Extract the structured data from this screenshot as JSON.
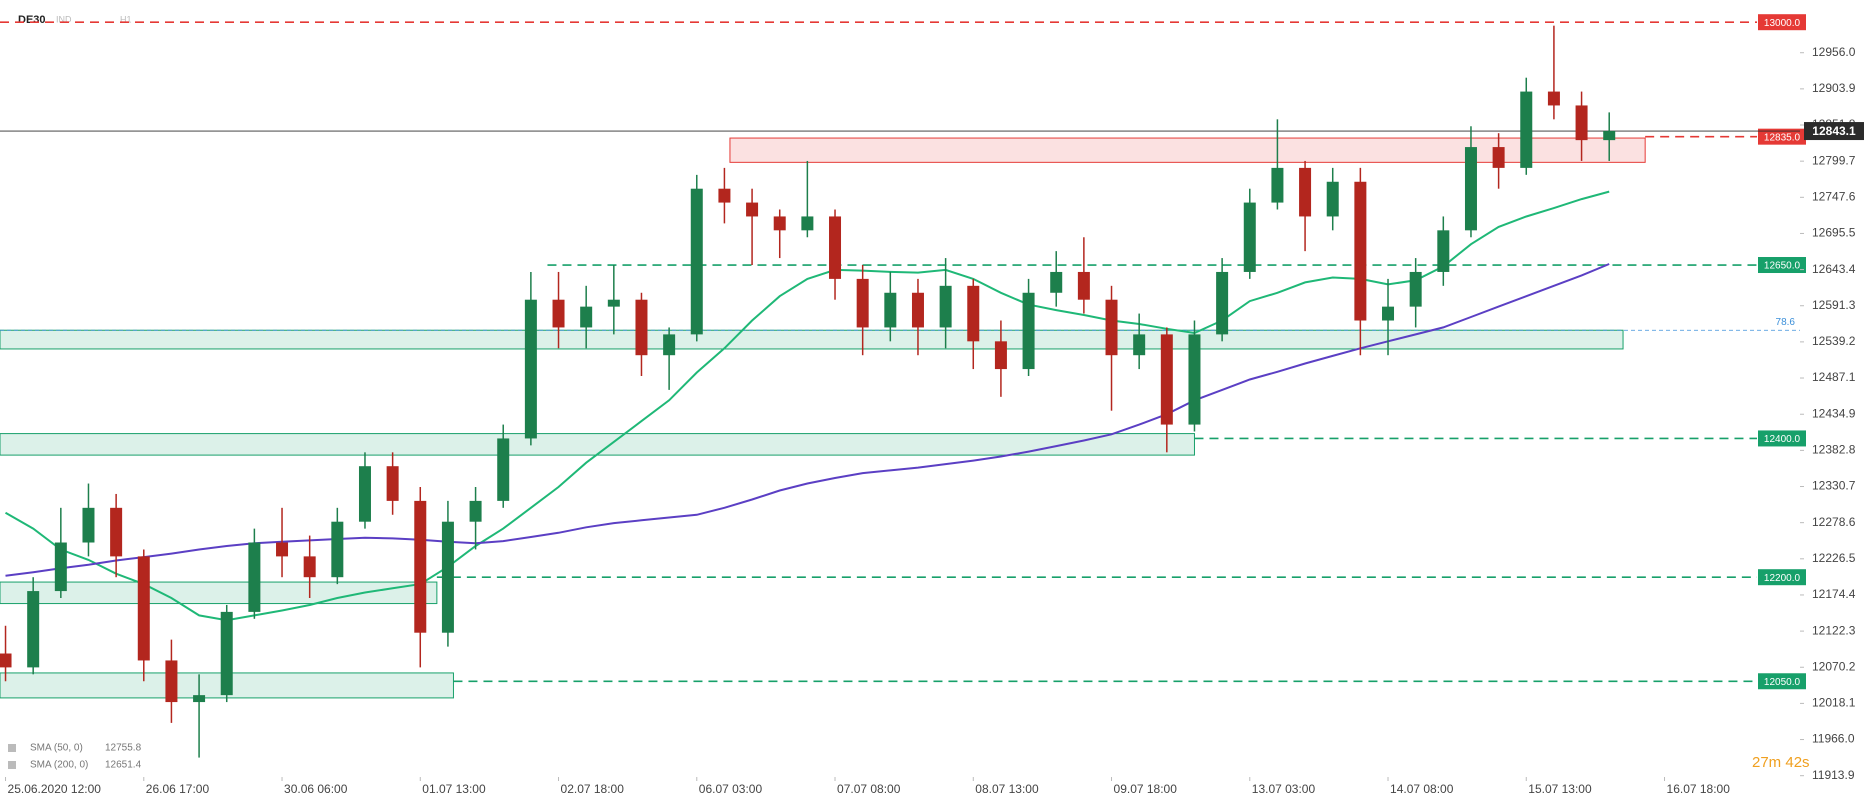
{
  "chart_data": {
    "type": "candlestick",
    "title": "DE30",
    "symbol_tags": [
      "IND",
      "H1"
    ],
    "timer": "27m 42s",
    "ohlc": {
      "open": [
        12090,
        12070,
        12180,
        12250,
        12300,
        12230,
        12080,
        12020,
        12030,
        12150,
        12250,
        12230,
        12200,
        12280,
        12360,
        12310,
        12120,
        12280,
        12310,
        12400,
        12600,
        12560,
        12590,
        12600,
        12520,
        12550,
        12760,
        12740,
        12720,
        12700,
        12720,
        12630,
        12560,
        12610,
        12560,
        12620,
        12540,
        12500,
        12610,
        12640,
        12600,
        12520,
        12550,
        12420,
        12550,
        12640,
        12740,
        12790,
        12720,
        12770,
        12570,
        12590,
        12640,
        12700,
        12820,
        12790,
        12900,
        12880,
        12830
      ],
      "high": [
        12130,
        12200,
        12300,
        12335,
        12320,
        12240,
        12110,
        12060,
        12160,
        12270,
        12300,
        12260,
        12300,
        12380,
        12380,
        12330,
        12310,
        12330,
        12420,
        12640,
        12640,
        12620,
        12650,
        12610,
        12560,
        12780,
        12790,
        12760,
        12730,
        12800,
        12730,
        12650,
        12640,
        12630,
        12660,
        12630,
        12570,
        12630,
        12670,
        12690,
        12620,
        12580,
        12560,
        12570,
        12660,
        12760,
        12860,
        12800,
        12790,
        12790,
        12630,
        12660,
        12720,
        12850,
        12840,
        12920,
        12995,
        12900,
        12870
      ],
      "low": [
        12050,
        12060,
        12170,
        12230,
        12200,
        12050,
        11990,
        11940,
        12020,
        12140,
        12200,
        12170,
        12190,
        12270,
        12290,
        12070,
        12100,
        12240,
        12300,
        12390,
        12530,
        12530,
        12550,
        12490,
        12470,
        12540,
        12710,
        12650,
        12660,
        12690,
        12600,
        12520,
        12540,
        12520,
        12530,
        12500,
        12460,
        12490,
        12590,
        12580,
        12440,
        12500,
        12380,
        12410,
        12540,
        12630,
        12730,
        12670,
        12700,
        12520,
        12520,
        12560,
        12620,
        12690,
        12760,
        12780,
        12860,
        12800,
        12800
      ],
      "close": [
        12070,
        12180,
        12250,
        12300,
        12230,
        12080,
        12020,
        12030,
        12150,
        12250,
        12230,
        12200,
        12280,
        12360,
        12310,
        12120,
        12280,
        12310,
        12400,
        12600,
        12560,
        12590,
        12600,
        12520,
        12550,
        12760,
        12740,
        12720,
        12700,
        12720,
        12630,
        12560,
        12610,
        12560,
        12620,
        12540,
        12500,
        12610,
        12640,
        12600,
        12520,
        12550,
        12420,
        12550,
        12640,
        12740,
        12790,
        12720,
        12770,
        12570,
        12590,
        12640,
        12700,
        12820,
        12790,
        12900,
        12880,
        12830,
        12843.1
      ]
    },
    "bull_color": "#1d7f4c",
    "bear_color": "#b3261e",
    "series": [
      {
        "name": "SMA (50, 0)",
        "color": "#1fb877",
        "values": [
          12293,
          12270,
          12240,
          12225,
          12205,
          12190,
          12170,
          12145,
          12138,
          12145,
          12152,
          12160,
          12170,
          12178,
          12184,
          12190,
          12215,
          12245,
          12270,
          12300,
          12330,
          12365,
          12395,
          12425,
          12455,
          12495,
          12530,
          12570,
          12605,
          12630,
          12643,
          12642,
          12640,
          12639,
          12643,
          12630,
          12610,
          12593,
          12585,
          12578,
          12570,
          12565,
          12558,
          12552,
          12570,
          12598,
          12610,
          12625,
          12632,
          12630,
          12622,
          12628,
          12648,
          12680,
          12705,
          12720,
          12732,
          12745,
          12755.8
        ]
      },
      {
        "name": "SMA (200, 0)",
        "color": "#5b3fc4",
        "values": [
          12202,
          12207,
          12213,
          12218,
          12224,
          12229,
          12234,
          12240,
          12245,
          12249,
          12251,
          12253,
          12255,
          12257,
          12256,
          12254,
          12251,
          12249,
          12252,
          12258,
          12264,
          12272,
          12278,
          12282,
          12286,
          12290,
          12300,
          12312,
          12325,
          12335,
          12343,
          12350,
          12354,
          12358,
          12363,
          12368,
          12374,
          12381,
          12389,
          12397,
          12406,
          12420,
          12435,
          12455,
          12470,
          12485,
          12496,
          12508,
          12519,
          12530,
          12540,
          12550,
          12560,
          12575,
          12590,
          12605,
          12620,
          12635,
          12651.4
        ]
      }
    ],
    "xlim": [
      -0.2,
      64.9
    ],
    "xticks": [
      {
        "value": 0,
        "label": "25.06.2020 12:00"
      },
      {
        "value": 5,
        "label": "26.06 17:00"
      },
      {
        "value": 10,
        "label": "30.06 06:00"
      },
      {
        "value": 15,
        "label": "01.07 13:00"
      },
      {
        "value": 20,
        "label": "02.07 18:00"
      },
      {
        "value": 25,
        "label": "06.07 03:00"
      },
      {
        "value": 30,
        "label": "07.07 08:00"
      },
      {
        "value": 35,
        "label": "08.07 13:00"
      },
      {
        "value": 40,
        "label": "09.07 18:00"
      },
      {
        "value": 45,
        "label": "13.07 03:00"
      },
      {
        "value": 50,
        "label": "14.07 08:00"
      },
      {
        "value": 55,
        "label": "15.07 13:00"
      },
      {
        "value": 60,
        "label": "16.07 18:00"
      }
    ],
    "ylim": [
      11912,
      13032
    ],
    "yticks": [
      {
        "value": 12956,
        "label": "12956.0"
      },
      12903.9,
      12851.8,
      12799.7,
      12747.6,
      12695.5,
      12643.4,
      12591.3,
      12539.2,
      12487.1,
      12434.9,
      12382.8,
      12330.7,
      12278.6,
      12226.5,
      12174.4,
      12122.3,
      12070.2,
      12018.1,
      {
        "value": 11966,
        "label": "11966.0"
      },
      11913.9
    ],
    "levels": [
      {
        "value": 13000,
        "label": "13000.0",
        "color": "#e53935",
        "from": -0.2
      },
      {
        "value": 12835,
        "label": "12835.0",
        "color": "#e53935",
        "from": 59.3
      },
      {
        "value": 12650,
        "label": "12650.0",
        "color": "#17a06a",
        "from": 19.6
      },
      {
        "value": 12400,
        "label": "12400.0",
        "color": "#17a06a",
        "from": 43
      },
      {
        "value": 12200,
        "label": "12200.0",
        "color": "#17a06a",
        "from": 15.6
      },
      {
        "value": 12050,
        "label": "12050.0",
        "color": "#17a06a",
        "from": 16.2
      }
    ],
    "zones": [
      {
        "low": 12798,
        "high": 12833,
        "x0": 26.2,
        "x1": 59.3,
        "color": "#e53935"
      },
      {
        "low": 12529,
        "high": 12556,
        "x0": -0.2,
        "x1": 58.5,
        "color": "#17a06a"
      },
      {
        "low": 12376,
        "high": 12407,
        "x0": -0.2,
        "x1": 43,
        "color": "#17a06a"
      },
      {
        "low": 12162,
        "high": 12193,
        "x0": -0.2,
        "x1": 15.6,
        "color": "#17a06a"
      },
      {
        "low": 12026,
        "high": 12062,
        "x0": -0.2,
        "x1": 16.2,
        "color": "#17a06a"
      }
    ],
    "fib": {
      "ratio": 78.6,
      "price": 12556,
      "color": "#3b8fd9"
    },
    "last_price": {
      "value": 12843.1,
      "color": "#2b2b2b"
    }
  }
}
